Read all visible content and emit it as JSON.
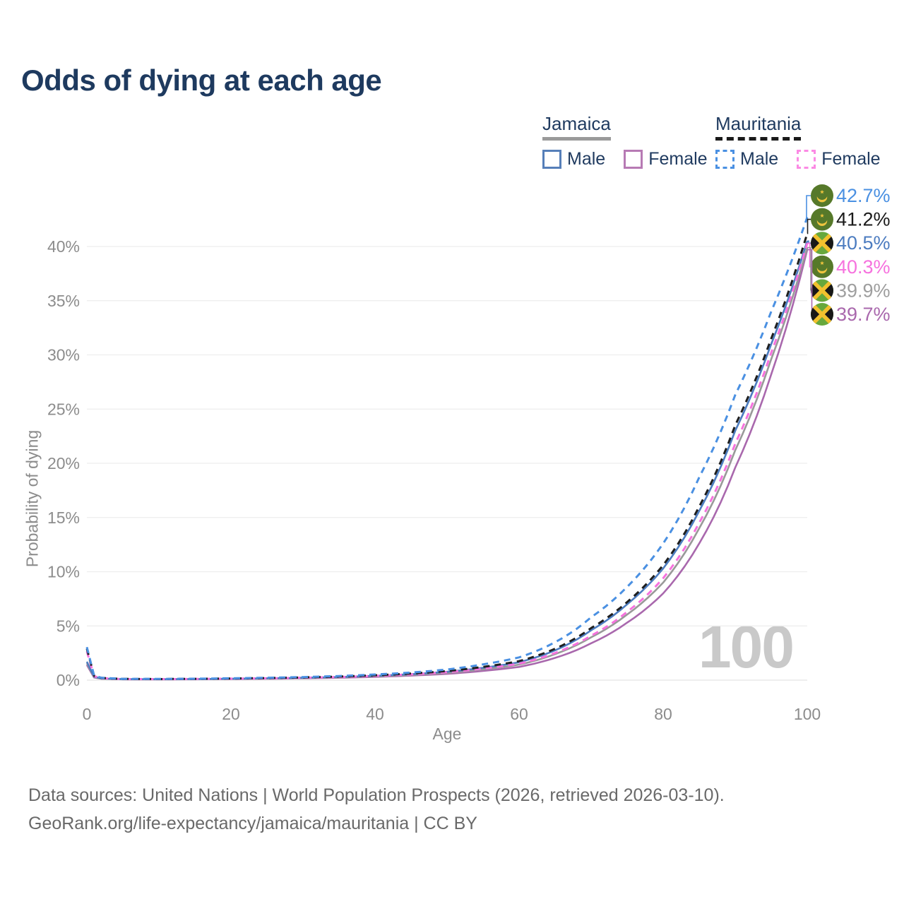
{
  "title": "Odds of dying at each age",
  "watermark": "100",
  "legend": {
    "groups": [
      {
        "country": "Jamaica",
        "line_style": "solid",
        "underline_color": "#9a9a9a",
        "items": [
          {
            "label": "Male",
            "color": "#567fb9",
            "dashed": false
          },
          {
            "label": "Female",
            "color": "#b77ab4",
            "dashed": false
          }
        ]
      },
      {
        "country": "Mauritania",
        "line_style": "dashed",
        "underline_color": "#1a1a1a",
        "items": [
          {
            "label": "Male",
            "color": "#4a90e2",
            "dashed": true
          },
          {
            "label": "Female",
            "color": "#fb8ae4",
            "dashed": true
          }
        ]
      }
    ]
  },
  "chart_data": {
    "type": "line",
    "title": "Odds of dying at each age",
    "xlabel": "Age",
    "ylabel": "Probability of dying",
    "xlim": [
      0,
      100
    ],
    "ylim": [
      0,
      44
    ],
    "x_ticks": [
      0,
      20,
      40,
      60,
      80,
      100
    ],
    "y_ticks": [
      "0%",
      "5%",
      "10%",
      "15%",
      "20%",
      "25%",
      "30%",
      "35%",
      "40%"
    ],
    "grid": true,
    "legend_position": "top-right",
    "ages": [
      0,
      1,
      2,
      5,
      10,
      15,
      20,
      25,
      30,
      35,
      40,
      45,
      50,
      55,
      60,
      65,
      70,
      75,
      80,
      85,
      90,
      95,
      100
    ],
    "series": [
      {
        "name": "Jamaica Female",
        "country": "Jamaica",
        "sex": "Female",
        "color": "#a968ad",
        "label_color": "#a968ad",
        "dashed": false,
        "flag": "jamaica",
        "end_label": "39.7%",
        "values": [
          1.4,
          0.24,
          0.13,
          0.075,
          0.07,
          0.08,
          0.1,
          0.13,
          0.17,
          0.22,
          0.3,
          0.42,
          0.58,
          0.85,
          1.22,
          2.05,
          3.4,
          5.3,
          8.0,
          12.6,
          19.6,
          28.2,
          39.7
        ]
      },
      {
        "name": "Jamaica Both sexes",
        "country": "Jamaica",
        "sex": "Both",
        "color": "#999999",
        "label_color": "#9e9e9e",
        "dashed": false,
        "flag": "jamaica",
        "end_label": "39.9%",
        "values": [
          1.55,
          0.27,
          0.14,
          0.08,
          0.075,
          0.09,
          0.12,
          0.15,
          0.19,
          0.26,
          0.35,
          0.48,
          0.67,
          0.99,
          1.43,
          2.4,
          3.95,
          6.05,
          9.0,
          14.0,
          21.2,
          29.6,
          39.9
        ]
      },
      {
        "name": "Jamaica Male",
        "country": "Jamaica",
        "sex": "Male",
        "color": "#4c7cc0",
        "label_color": "#4c7cc0",
        "dashed": false,
        "flag": "jamaica",
        "end_label": "40.5%",
        "values": [
          1.7,
          0.3,
          0.16,
          0.09,
          0.085,
          0.1,
          0.13,
          0.17,
          0.22,
          0.29,
          0.4,
          0.55,
          0.77,
          1.14,
          1.65,
          2.75,
          4.6,
          7.0,
          10.3,
          15.6,
          23.0,
          31.0,
          40.5
        ]
      },
      {
        "name": "Mauritania Female",
        "country": "Mauritania",
        "sex": "Female",
        "color": "#f672de",
        "label_color": "#f672de",
        "dashed": true,
        "flag": "mauritania",
        "end_label": "40.3%",
        "values": [
          2.65,
          0.36,
          0.19,
          0.1,
          0.095,
          0.11,
          0.14,
          0.17,
          0.22,
          0.29,
          0.39,
          0.53,
          0.73,
          1.06,
          1.52,
          2.5,
          4.1,
          6.3,
          9.4,
          14.5,
          21.8,
          30.2,
          40.3
        ]
      },
      {
        "name": "Mauritania Both sexes",
        "country": "Mauritania",
        "sex": "Both",
        "color": "#1f1f1f",
        "label_color": "#1a1a1a",
        "dashed": true,
        "flag": "mauritania",
        "end_label": "41.2%",
        "values": [
          2.9,
          0.4,
          0.21,
          0.11,
          0.1,
          0.12,
          0.15,
          0.19,
          0.25,
          0.33,
          0.45,
          0.61,
          0.84,
          1.22,
          1.75,
          2.9,
          4.8,
          7.2,
          10.6,
          16.0,
          23.5,
          31.5,
          41.2
        ]
      },
      {
        "name": "Mauritania Male",
        "country": "Mauritania",
        "sex": "Male",
        "color": "#4a90e2",
        "label_color": "#4a90e2",
        "dashed": true,
        "flag": "mauritania",
        "end_label": "42.7%",
        "values": [
          3.05,
          0.42,
          0.22,
          0.12,
          0.11,
          0.13,
          0.17,
          0.22,
          0.28,
          0.38,
          0.52,
          0.7,
          0.98,
          1.45,
          2.1,
          3.5,
          5.8,
          8.6,
          12.6,
          18.7,
          26.3,
          34.0,
          42.7
        ]
      }
    ]
  },
  "footer": {
    "line1": "Data sources: United Nations | World Population Prospects (2026, retrieved 2026-03-10).",
    "line2": "GeoRank.org/life-expectancy/jamaica/mauritania | CC BY"
  }
}
